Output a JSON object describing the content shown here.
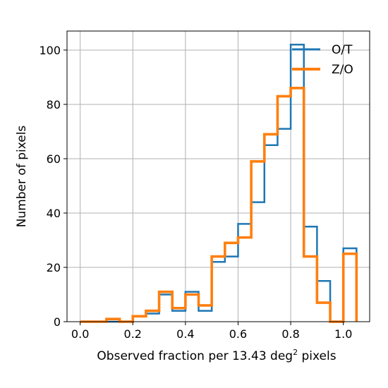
{
  "chart_data": {
    "type": "histogram",
    "xlabel": "Observed fraction per 13.43 deg",
    "xlabel_superscript": "2",
    "xlabel_suffix": " pixels",
    "ylabel": "Number of pixels",
    "xlim": [
      -0.05,
      1.1
    ],
    "ylim": [
      0,
      107
    ],
    "xticks": [
      0.0,
      0.2,
      0.4,
      0.6,
      0.8,
      1.0
    ],
    "xtick_labels": [
      "0.0",
      "0.2",
      "0.4",
      "0.6",
      "0.8",
      "1.0"
    ],
    "yticks": [
      0,
      20,
      40,
      60,
      80,
      100
    ],
    "ytick_labels": [
      "0",
      "20",
      "40",
      "60",
      "80",
      "100"
    ],
    "grid": true,
    "legend_position": "top-right",
    "bin_edges": [
      0.0,
      0.05,
      0.1,
      0.15,
      0.2,
      0.25,
      0.3,
      0.35,
      0.4,
      0.45,
      0.5,
      0.55,
      0.6,
      0.65,
      0.7,
      0.75,
      0.8,
      0.85,
      0.9,
      0.95,
      1.0,
      1.05
    ],
    "series": [
      {
        "name": "O/T",
        "color": "#1f77b4",
        "values": [
          0,
          0,
          0,
          0,
          2,
          3,
          10,
          4,
          11,
          4,
          22,
          24,
          36,
          44,
          65,
          71,
          102,
          35,
          15,
          0,
          27
        ]
      },
      {
        "name": "Z/O",
        "color": "#ff7f0e",
        "values": [
          0,
          0,
          1,
          0,
          2,
          4,
          11,
          5,
          10,
          6,
          24,
          29,
          31,
          59,
          69,
          83,
          86,
          24,
          7,
          0,
          25
        ]
      }
    ]
  }
}
